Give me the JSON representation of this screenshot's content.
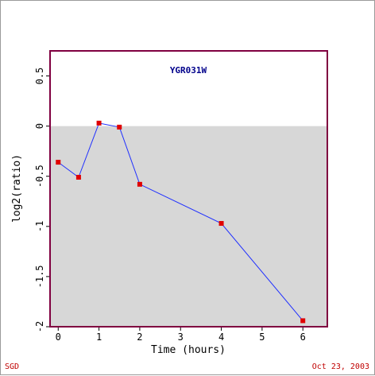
{
  "chart_data": {
    "type": "line",
    "title": "YGR031W",
    "xlabel": "Time (hours)",
    "ylabel": "log2(ratio)",
    "xlim": [
      -0.2,
      6.6
    ],
    "ylim": [
      -2.0,
      0.75
    ],
    "x_ticks": [
      "0",
      "1",
      "2",
      "3",
      "4",
      "5",
      "6"
    ],
    "y_ticks": [
      "0.5",
      "0",
      "-0.5",
      "-1",
      "-1.5",
      "-2"
    ],
    "series": [
      {
        "x": [
          0,
          0.5,
          1,
          1.5,
          2,
          4,
          6
        ],
        "y": [
          -0.36,
          -0.51,
          0.03,
          -0.01,
          -0.58,
          -0.97,
          -1.94
        ]
      }
    ],
    "shade_below": 0,
    "grid": false
  },
  "colors": {
    "frame": "#800040",
    "line": "#1f2fff",
    "marker": "#e00000",
    "shade": "#d7d7d7",
    "title": "#00008b",
    "footer": "#c00000"
  },
  "footer": {
    "left": "SGD",
    "right": "Oct 23, 2003"
  }
}
